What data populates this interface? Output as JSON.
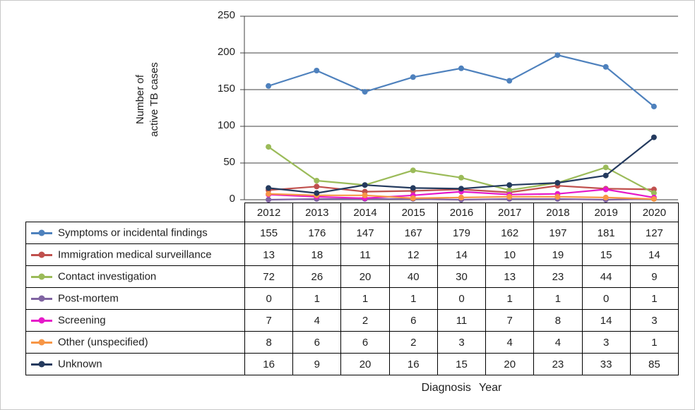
{
  "chart_data": {
    "type": "line",
    "title": "",
    "xlabel": "Diagnosis Year",
    "ylabel_lines": [
      "Number of",
      "active TB cases"
    ],
    "x": [
      2012,
      2013,
      2014,
      2015,
      2016,
      2017,
      2018,
      2019,
      2020
    ],
    "ylim": [
      0,
      250
    ],
    "yticks": [
      0,
      50,
      100,
      150,
      200,
      250
    ],
    "grid": true,
    "legend_position": "table-left",
    "series": [
      {
        "name": "Symptoms or incidental findings",
        "color": "#4E81BD",
        "values": [
          155,
          176,
          147,
          167,
          179,
          162,
          197,
          181,
          127
        ]
      },
      {
        "name": "Immigration medical surveillance",
        "color": "#C0504D",
        "values": [
          13,
          18,
          11,
          12,
          14,
          10,
          19,
          15,
          14
        ]
      },
      {
        "name": "Contact investigation",
        "color": "#9BBB59",
        "values": [
          72,
          26,
          20,
          40,
          30,
          13,
          23,
          44,
          9
        ]
      },
      {
        "name": "Post-mortem",
        "color": "#8064A2",
        "values": [
          0,
          1,
          1,
          1,
          0,
          1,
          1,
          0,
          1
        ]
      },
      {
        "name": "Screening",
        "color": "#E619C9",
        "values": [
          7,
          4,
          2,
          6,
          11,
          7,
          8,
          14,
          3
        ]
      },
      {
        "name": "Other (unspecified)",
        "color": "#F79646",
        "values": [
          8,
          6,
          6,
          2,
          3,
          4,
          4,
          3,
          1
        ]
      },
      {
        "name": "Unknown",
        "color": "#243A5E",
        "values": [
          16,
          9,
          20,
          16,
          15,
          20,
          23,
          33,
          85
        ]
      }
    ]
  }
}
